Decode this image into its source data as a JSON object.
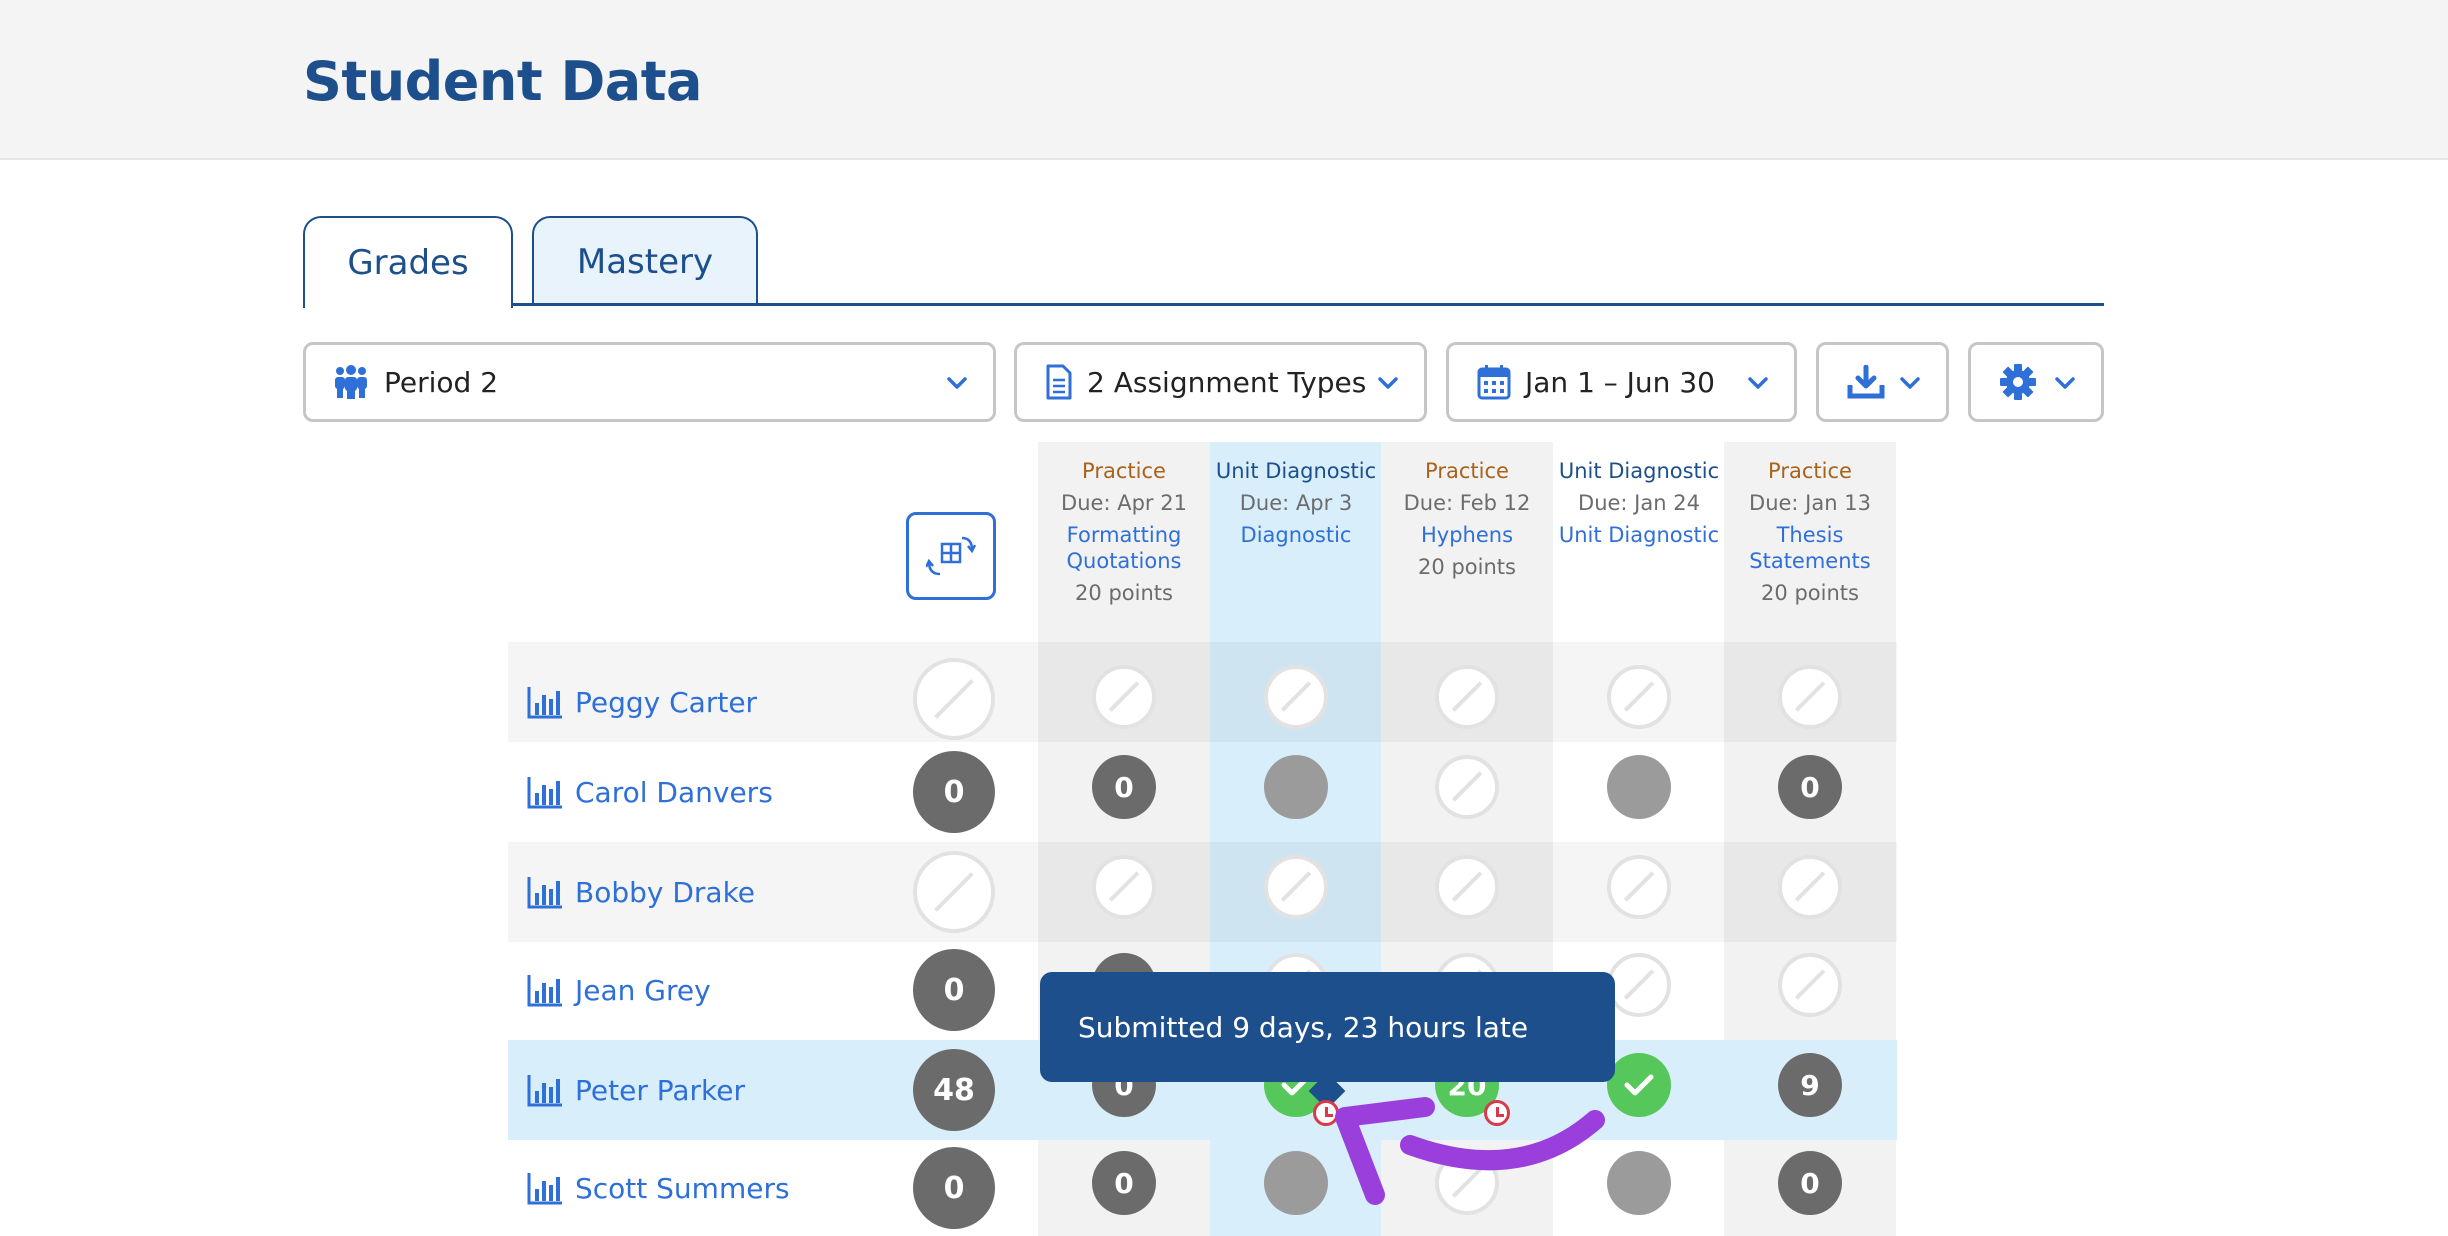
{
  "page": {
    "title": "Student Data"
  },
  "tabs": [
    {
      "label": "Grades",
      "active": true
    },
    {
      "label": "Mastery",
      "active": false
    }
  ],
  "controls": {
    "period": {
      "label": "Period 2",
      "icon": "people-icon"
    },
    "assignment_types": {
      "label": "2 Assignment Types",
      "icon": "document-icon"
    },
    "date_range": {
      "label": "Jan 1 – Jun 30",
      "icon": "calendar-icon"
    },
    "download": {
      "icon": "download-icon"
    },
    "settings": {
      "icon": "gear-icon"
    }
  },
  "columns": [
    {
      "type": "Practice",
      "due": "Due: Apr 21",
      "name": "Formatting Quotations",
      "points": "20 points",
      "kind": "practice"
    },
    {
      "type": "Unit Diagnostic",
      "due": "Due: Apr 3",
      "name": "Diagnostic",
      "points": "",
      "kind": "unit"
    },
    {
      "type": "Practice",
      "due": "Due: Feb 12",
      "name": "Hyphens",
      "points": "20 points",
      "kind": "practice"
    },
    {
      "type": "Unit Diagnostic",
      "due": "Due: Jan 24",
      "name": "Unit Diagnostic",
      "points": "",
      "kind": "unit"
    },
    {
      "type": "Practice",
      "due": "Due: Jan 13",
      "name": "Thesis Statements",
      "points": "20 points",
      "kind": "practice"
    }
  ],
  "students": [
    {
      "name": "Peggy Carter",
      "total": "",
      "total_state": "empty",
      "cells": [
        {
          "state": "empty",
          "value": ""
        },
        {
          "state": "empty",
          "value": ""
        },
        {
          "state": "empty",
          "value": ""
        },
        {
          "state": "empty",
          "value": ""
        },
        {
          "state": "empty",
          "value": ""
        }
      ]
    },
    {
      "name": "Carol Danvers",
      "total": "0",
      "total_state": "dark",
      "cells": [
        {
          "state": "dark",
          "value": "0"
        },
        {
          "state": "gray",
          "value": ""
        },
        {
          "state": "empty",
          "value": ""
        },
        {
          "state": "gray",
          "value": ""
        },
        {
          "state": "dark",
          "value": "0"
        }
      ]
    },
    {
      "name": "Bobby Drake",
      "total": "",
      "total_state": "empty",
      "cells": [
        {
          "state": "empty",
          "value": ""
        },
        {
          "state": "empty",
          "value": ""
        },
        {
          "state": "empty",
          "value": ""
        },
        {
          "state": "empty",
          "value": ""
        },
        {
          "state": "empty",
          "value": ""
        }
      ]
    },
    {
      "name": "Jean Grey",
      "total": "0",
      "total_state": "dark",
      "cells": [
        {
          "state": "dark",
          "value": ""
        },
        {
          "state": "empty",
          "value": ""
        },
        {
          "state": "empty",
          "value": ""
        },
        {
          "state": "empty",
          "value": ""
        },
        {
          "state": "empty",
          "value": ""
        }
      ]
    },
    {
      "name": "Peter Parker",
      "total": "48",
      "total_state": "dark",
      "highlight": true,
      "cells": [
        {
          "state": "dark",
          "value": "0"
        },
        {
          "state": "green-check",
          "value": "",
          "late": true
        },
        {
          "state": "green",
          "value": "20",
          "late": true
        },
        {
          "state": "green-check",
          "value": ""
        },
        {
          "state": "dark",
          "value": "9"
        }
      ]
    },
    {
      "name": "Scott Summers",
      "total": "0",
      "total_state": "dark",
      "cells": [
        {
          "state": "dark",
          "value": "0"
        },
        {
          "state": "gray",
          "value": ""
        },
        {
          "state": "empty",
          "value": ""
        },
        {
          "state": "gray",
          "value": ""
        },
        {
          "state": "dark",
          "value": "0"
        }
      ]
    }
  ],
  "tooltip": {
    "text": "Submitted 9 days, 23 hours late"
  },
  "colors": {
    "brand": "#1c4f8c",
    "link": "#2f6fd8",
    "practice": "#a9621a",
    "late": "#d93a4a",
    "success": "#56c75a",
    "highlight": "#d8eefb",
    "annotation": "#9a3fdb"
  }
}
